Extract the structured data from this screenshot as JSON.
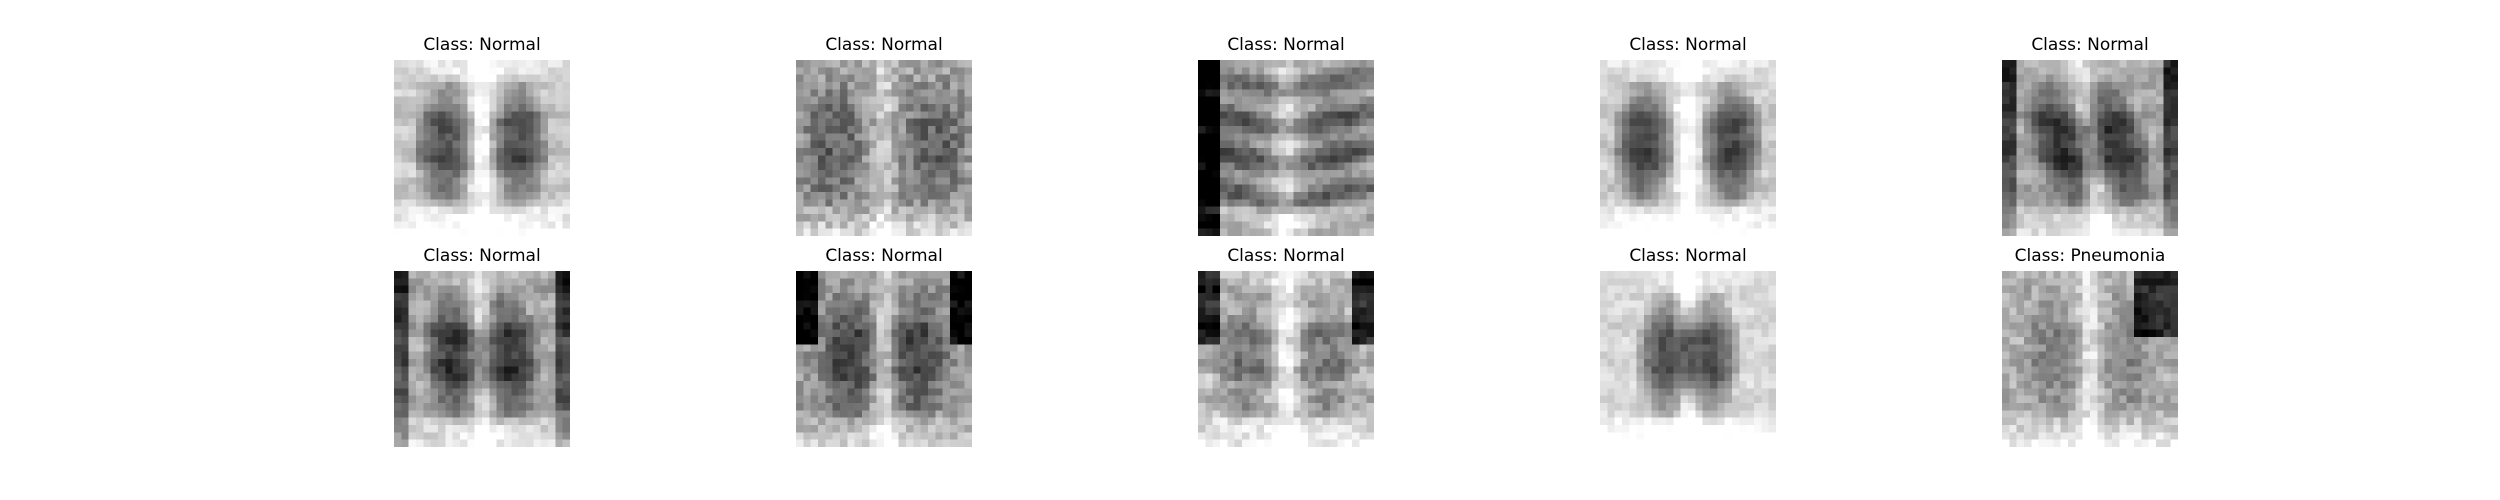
{
  "figure": {
    "background": "#ffffff",
    "colormap": "gray",
    "rows": 2,
    "columns": 5,
    "panels": [
      {
        "title": "Class: Normal",
        "subject": "chest-xray",
        "variant": "bright-lungs"
      },
      {
        "title": "Class: Normal",
        "subject": "chest-xray",
        "variant": "hazy-mottled"
      },
      {
        "title": "Class: Normal",
        "subject": "chest-xray",
        "variant": "ribs-dark-left"
      },
      {
        "title": "Class: Normal",
        "subject": "chest-xray",
        "variant": "clear-lungs"
      },
      {
        "title": "Class: Normal",
        "subject": "chest-xray",
        "variant": "tilted-dark"
      },
      {
        "title": "Class: Normal",
        "subject": "chest-xray",
        "variant": "dark-lungs"
      },
      {
        "title": "Class: Normal",
        "subject": "chest-xray",
        "variant": "hazy-dark-corners"
      },
      {
        "title": "Class: Normal",
        "subject": "chest-xray",
        "variant": "bright-fuzzy"
      },
      {
        "title": "Class: Normal",
        "subject": "chest-xray",
        "variant": "dark-lobes-bright"
      },
      {
        "title": "Class: Pneumonia",
        "subject": "chest-xray",
        "variant": "diffuse-opacity"
      }
    ]
  }
}
